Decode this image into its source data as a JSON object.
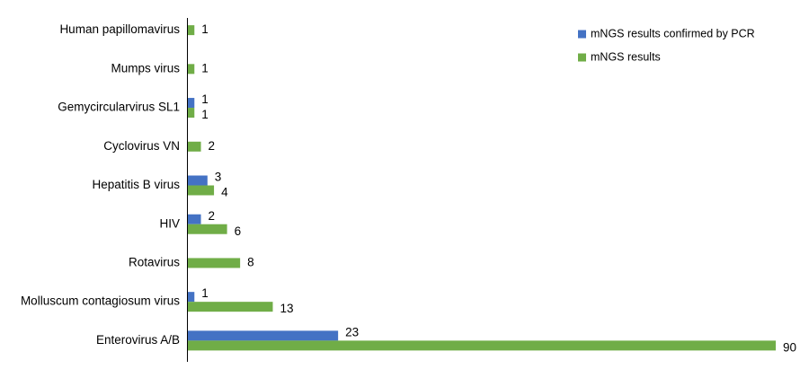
{
  "chart_data": {
    "type": "hbar",
    "categories": [
      "Human papillomavirus",
      "Mumps virus",
      "Gemycircularvirus SL1",
      "Cyclovirus VN",
      "Hepatitis B virus",
      "HIV",
      "Rotavirus",
      "Molluscum contagiosum virus",
      "Enterovirus A/B"
    ],
    "series": [
      {
        "name": "mNGS results confirmed by PCR",
        "color": "#4472c4",
        "values": [
          null,
          null,
          1,
          null,
          3,
          2,
          null,
          1,
          23
        ]
      },
      {
        "name": "mNGS results",
        "color": "#70ad47",
        "values": [
          1,
          1,
          1,
          2,
          4,
          6,
          8,
          13,
          90
        ]
      }
    ],
    "legend": "upper right"
  }
}
